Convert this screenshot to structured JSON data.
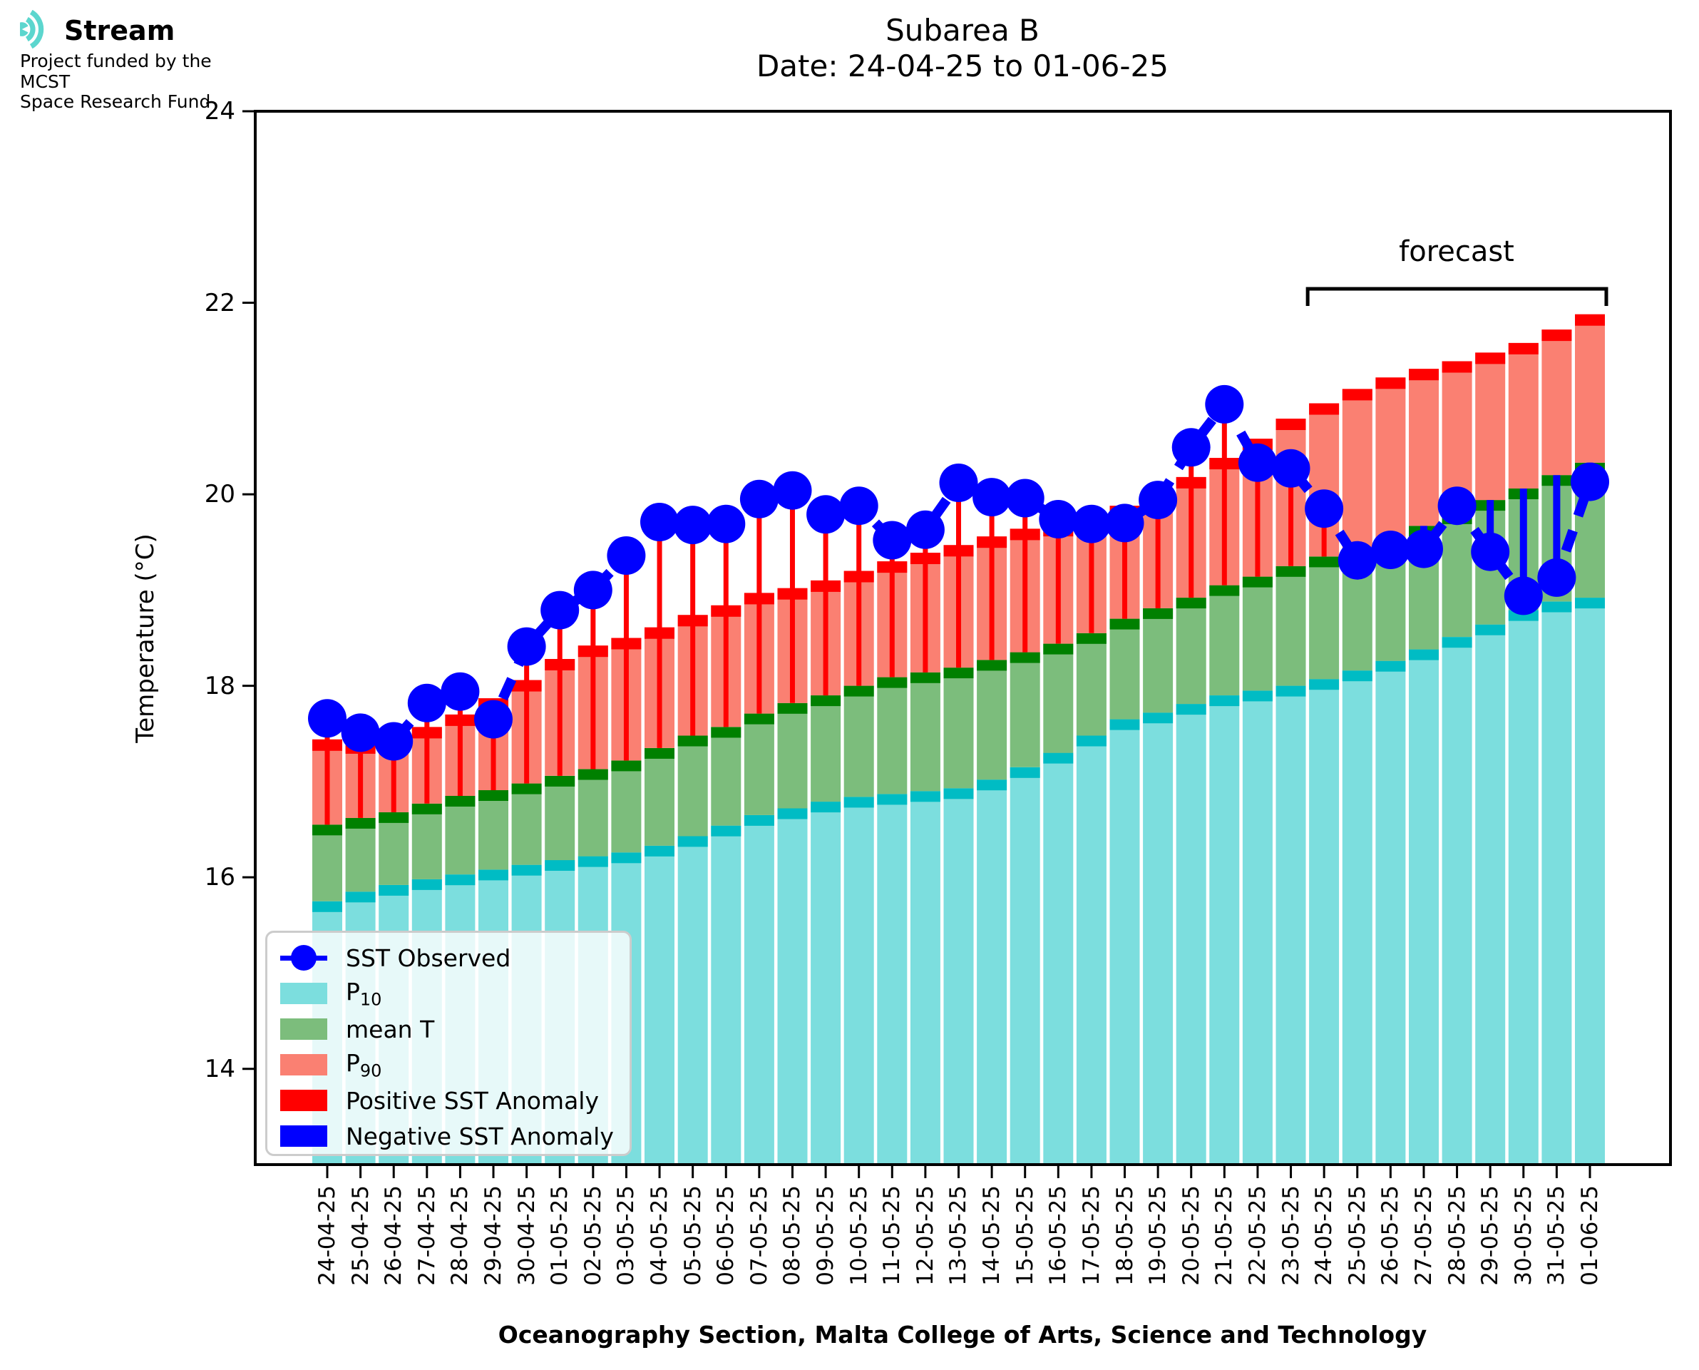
{
  "logo": {
    "brand": "Stream",
    "line1": "Project funded by the MCST",
    "line2": "Space Research Fund"
  },
  "title": {
    "line1": "Subarea B",
    "line2": "Date: 24-04-25 to 01-06-25"
  },
  "axes": {
    "y_label": "Temperature (°C)",
    "x_label": "Oceanography Section, Malta College of Arts, Science and Technology",
    "y_ticks": [
      14,
      16,
      18,
      20,
      22,
      24
    ],
    "ylim": [
      13,
      24
    ]
  },
  "forecast": {
    "label": "forecast",
    "start_date": "24-05-25",
    "end_date": "01-06-25",
    "start_index": 30
  },
  "colors": {
    "p10_fill": "#7CDEDE",
    "p10_cap": "#00BCC4",
    "mean_fill": "#7CBD7C",
    "mean_cap": "#008000",
    "p90_fill": "#FA8072",
    "p90_cap": "#FF0000",
    "positive_anomaly": "#FF0000",
    "negative_anomaly": "#0000FF",
    "observed": "#0000FF",
    "logo_teal": "#5CD6CE"
  },
  "legend": {
    "items": [
      {
        "main": "SST Observed",
        "sub": "",
        "type": "line-dot",
        "color": "#0000FF"
      },
      {
        "main": "P",
        "sub": "10",
        "type": "patch",
        "color": "#7CDEDE"
      },
      {
        "main": "mean T",
        "sub": "",
        "type": "patch",
        "color": "#7CBD7C"
      },
      {
        "main": "P",
        "sub": "90",
        "type": "patch",
        "color": "#FA8072"
      },
      {
        "main": "Positive SST Anomaly",
        "sub": "",
        "type": "patch",
        "color": "#FF0000"
      },
      {
        "main": "Negative SST Anomaly",
        "sub": "",
        "type": "patch",
        "color": "#0000FF"
      }
    ]
  },
  "chart_data": {
    "type": "bar",
    "title": "Subarea B",
    "subtitle": "Date: 24-04-25 to 01-06-25",
    "xlabel": "Oceanography Section, Malta College of Arts, Science and Technology",
    "ylabel": "Temperature (°C)",
    "ylim": [
      13,
      24
    ],
    "grid": false,
    "legend_position": "lower-left",
    "forecast_start_index": 30,
    "categories": [
      "24-04-25",
      "25-04-25",
      "26-04-25",
      "27-04-25",
      "28-04-25",
      "29-04-25",
      "30-04-25",
      "01-05-25",
      "02-05-25",
      "03-05-25",
      "04-05-25",
      "05-05-25",
      "06-05-25",
      "07-05-25",
      "08-05-25",
      "09-05-25",
      "10-05-25",
      "11-05-25",
      "12-05-25",
      "13-05-25",
      "14-05-25",
      "15-05-25",
      "16-05-25",
      "17-05-25",
      "18-05-25",
      "19-05-25",
      "20-05-25",
      "21-05-25",
      "22-05-25",
      "23-05-25",
      "24-05-25",
      "25-05-25",
      "26-05-25",
      "27-05-25",
      "28-05-25",
      "29-05-25",
      "30-05-25",
      "31-05-25",
      "01-06-25"
    ],
    "series": [
      {
        "name": "P10",
        "type": "bar",
        "values": [
          15.75,
          15.85,
          15.92,
          15.98,
          16.03,
          16.08,
          16.13,
          16.18,
          16.22,
          16.26,
          16.33,
          16.43,
          16.54,
          16.65,
          16.72,
          16.79,
          16.84,
          16.87,
          16.9,
          16.93,
          17.02,
          17.15,
          17.3,
          17.48,
          17.65,
          17.72,
          17.81,
          17.9,
          17.95,
          18.0,
          18.07,
          18.16,
          18.26,
          18.38,
          18.51,
          18.64,
          18.79,
          18.88,
          18.92
        ]
      },
      {
        "name": "mean T",
        "type": "bar",
        "values": [
          16.55,
          16.62,
          16.68,
          16.77,
          16.85,
          16.91,
          16.98,
          17.06,
          17.13,
          17.22,
          17.35,
          17.48,
          17.57,
          17.71,
          17.82,
          17.9,
          18.0,
          18.09,
          18.14,
          18.19,
          18.27,
          18.35,
          18.44,
          18.55,
          18.7,
          18.81,
          18.92,
          19.05,
          19.14,
          19.25,
          19.35,
          19.44,
          19.53,
          19.67,
          19.8,
          19.94,
          20.06,
          20.2,
          20.33
        ]
      },
      {
        "name": "P90",
        "type": "bar",
        "values": [
          17.44,
          17.41,
          17.49,
          17.57,
          17.7,
          17.87,
          18.06,
          18.28,
          18.42,
          18.5,
          18.61,
          18.74,
          18.84,
          18.97,
          19.02,
          19.1,
          19.2,
          19.3,
          19.39,
          19.47,
          19.56,
          19.64,
          19.68,
          19.78,
          19.88,
          20.02,
          20.18,
          20.38,
          20.58,
          20.79,
          20.95,
          21.1,
          21.22,
          21.31,
          21.39,
          21.48,
          21.58,
          21.72,
          21.88
        ]
      },
      {
        "name": "SST Observed",
        "type": "line",
        "values": [
          17.66,
          17.51,
          17.42,
          17.82,
          17.94,
          17.65,
          18.41,
          18.79,
          19.0,
          19.36,
          19.71,
          19.68,
          19.69,
          19.95,
          20.04,
          19.79,
          19.88,
          19.52,
          19.63,
          20.12,
          19.97,
          19.96,
          19.74,
          19.69,
          19.7,
          19.94,
          20.49,
          20.94,
          20.33,
          20.27,
          19.85,
          19.31,
          19.42,
          19.43,
          19.88,
          19.4,
          18.94,
          19.13,
          20.13
        ]
      }
    ]
  }
}
